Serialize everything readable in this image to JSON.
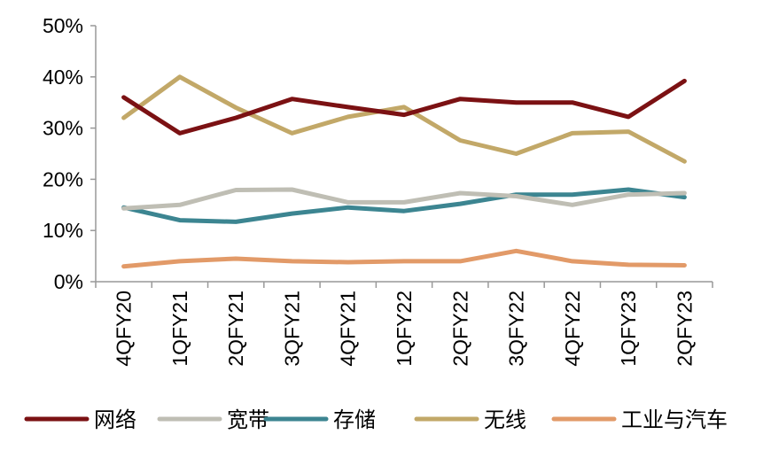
{
  "chart_data": {
    "type": "line",
    "categories": [
      "4QFY20",
      "1QFY21",
      "2QFY21",
      "3QFY21",
      "4QFY21",
      "1QFY22",
      "2QFY22",
      "3QFY22",
      "4QFY22",
      "1QFY23",
      "2QFY23"
    ],
    "ylim": [
      0,
      50
    ],
    "yticks": [
      0,
      10,
      20,
      30,
      40,
      50
    ],
    "ytick_labels": [
      "0%",
      "10%",
      "20%",
      "30%",
      "40%",
      "50%"
    ],
    "y_unit": "%",
    "grid": false,
    "legend_position": "bottom",
    "series": [
      {
        "name": "网络",
        "color": "#7B1113",
        "values": [
          36.0,
          29.0,
          32.0,
          35.7,
          34.1,
          32.6,
          35.7,
          35.0,
          35.0,
          32.2,
          39.2
        ]
      },
      {
        "name": "宽带",
        "color": "#BFBEB4",
        "values": [
          14.3,
          15.0,
          17.9,
          18.0,
          15.5,
          15.5,
          17.3,
          16.7,
          15.0,
          17.0,
          17.3
        ]
      },
      {
        "name": "存储",
        "color": "#3C8591",
        "values": [
          14.5,
          12.0,
          11.7,
          13.3,
          14.5,
          13.8,
          15.2,
          17.0,
          17.0,
          18.0,
          16.5
        ]
      },
      {
        "name": "无线",
        "color": "#C2A868",
        "values": [
          32.0,
          40.0,
          34.0,
          29.0,
          32.2,
          34.1,
          27.6,
          25.0,
          29.0,
          29.3,
          23.5
        ]
      },
      {
        "name": "工业与汽车",
        "color": "#E29A68",
        "values": [
          3.0,
          4.0,
          4.5,
          4.0,
          3.8,
          4.0,
          4.0,
          6.0,
          4.0,
          3.3,
          3.2
        ]
      }
    ]
  }
}
